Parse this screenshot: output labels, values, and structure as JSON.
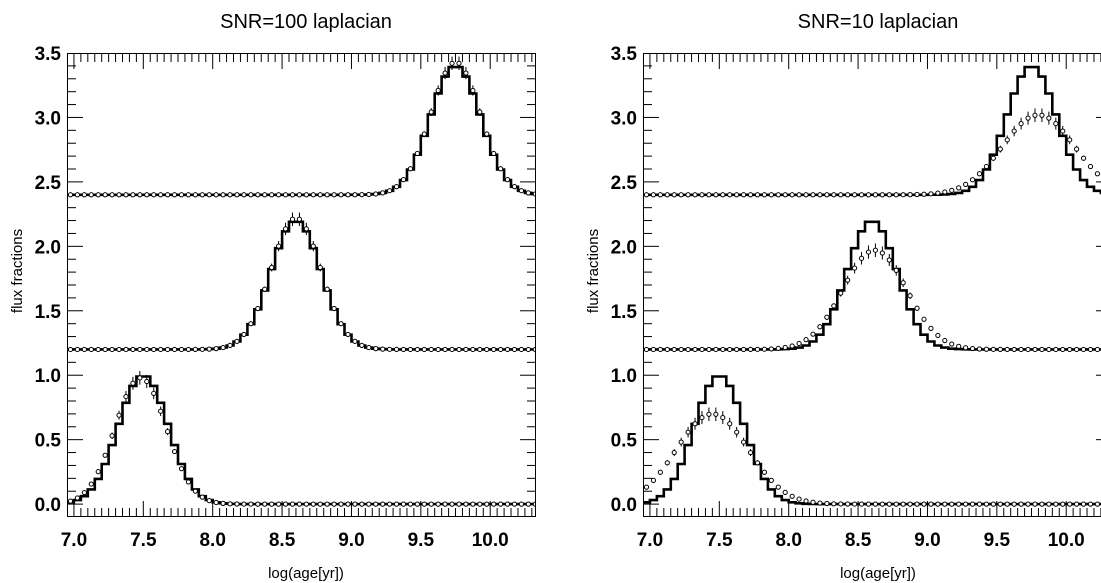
{
  "chart_data": [
    {
      "type": "line",
      "title": "SNR=100 laplacian",
      "xlabel": "log(age[yr])",
      "ylabel": "flux fractions",
      "xlim": [
        6.95,
        10.33
      ],
      "ylim": [
        -0.1,
        3.5
      ],
      "xticks": [
        7.0,
        7.5,
        8.0,
        8.5,
        9.0,
        9.5,
        10.0
      ],
      "xtick_labels": [
        "7.0",
        "7.5",
        "8.0",
        "8.5",
        "9.0",
        "9.5",
        "10.0"
      ],
      "yticks": [
        0.0,
        0.5,
        1.0,
        1.5,
        2.0,
        2.5,
        3.0,
        3.5
      ],
      "ytick_labels": [
        "0.0",
        "0.5",
        "1.0",
        "1.5",
        "2.0",
        "2.5",
        "3.0",
        "3.5"
      ],
      "grid": false,
      "bin_width": 0.05,
      "series": [
        {
          "style": "step",
          "baseline": 0.0,
          "peak_center": 7.5,
          "peak_sigma": 0.18,
          "peak_height": 1.0
        },
        {
          "style": "step",
          "baseline": 1.2,
          "peak_center": 8.6,
          "peak_sigma": 0.18,
          "peak_height": 1.0
        },
        {
          "style": "step",
          "baseline": 2.4,
          "peak_center": 9.75,
          "peak_sigma": 0.18,
          "peak_height": 1.0
        },
        {
          "style": "points_with_errorbars",
          "baseline": 0.0,
          "peak_center": 7.48,
          "peak_sigma": 0.185,
          "peak_height": 0.98
        },
        {
          "style": "points_with_errorbars",
          "baseline": 1.2,
          "peak_center": 8.6,
          "peak_sigma": 0.18,
          "peak_height": 1.02
        },
        {
          "style": "points_with_errorbars",
          "baseline": 2.4,
          "peak_center": 9.75,
          "peak_sigma": 0.18,
          "peak_height": 1.03
        }
      ]
    },
    {
      "type": "line",
      "title": "SNR=10 laplacian",
      "xlabel": "log(age[yr])",
      "ylabel": "flux fractions",
      "xlim": [
        6.95,
        10.33
      ],
      "ylim": [
        -0.1,
        3.5
      ],
      "xticks": [
        7.0,
        7.5,
        8.0,
        8.5,
        9.0,
        9.5,
        10.0
      ],
      "xtick_labels": [
        "7.0",
        "7.5",
        "8.0",
        "8.5",
        "9.0",
        "9.5",
        "10.0"
      ],
      "yticks": [
        0.0,
        0.5,
        1.0,
        1.5,
        2.0,
        2.5,
        3.0,
        3.5
      ],
      "ytick_labels": [
        "0.0",
        "0.5",
        "1.0",
        "1.5",
        "2.0",
        "2.5",
        "3.0",
        "3.5"
      ],
      "grid": false,
      "bin_width": 0.05,
      "series": [
        {
          "style": "step",
          "baseline": 0.0,
          "peak_center": 7.5,
          "peak_sigma": 0.18,
          "peak_height": 1.0
        },
        {
          "style": "step",
          "baseline": 1.2,
          "peak_center": 8.6,
          "peak_sigma": 0.18,
          "peak_height": 1.0
        },
        {
          "style": "step",
          "baseline": 2.4,
          "peak_center": 9.75,
          "peak_sigma": 0.18,
          "peak_height": 1.0
        },
        {
          "style": "points_with_errorbars",
          "baseline": 0.0,
          "peak_center": 7.45,
          "peak_sigma": 0.26,
          "peak_height": 0.7
        },
        {
          "style": "points_with_errorbars",
          "baseline": 1.2,
          "peak_center": 8.62,
          "peak_sigma": 0.23,
          "peak_height": 0.77
        },
        {
          "style": "points_with_errorbars",
          "baseline": 2.4,
          "peak_center": 9.8,
          "peak_sigma": 0.26,
          "peak_height": 0.62
        }
      ]
    }
  ]
}
